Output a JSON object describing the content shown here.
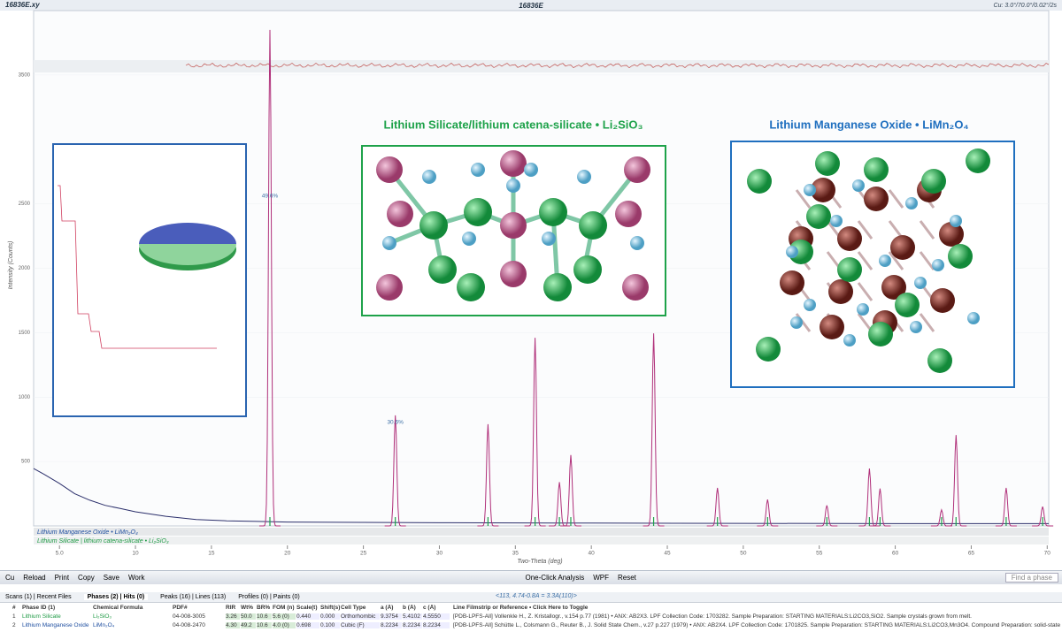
{
  "header": {
    "file_tab": "16836E.xy",
    "title": "16836E",
    "status": "Cu: 3.0°/70.0°/0.02°/2s"
  },
  "chart_data": {
    "type": "line",
    "x_label": "Two-Theta (deg)",
    "y_label": "Intensity (Counts)",
    "xlim": [
      3.3,
      70.1
    ],
    "ylim": [
      0,
      4000
    ],
    "xticks": [
      {
        "value": 5,
        "label": "5.0"
      },
      10,
      15,
      20,
      25,
      30,
      35,
      40,
      45,
      50,
      55,
      60,
      65,
      70
    ],
    "yticks": [
      500,
      1000,
      1500,
      2000,
      2500,
      3500
    ],
    "background": {
      "name": "Background",
      "color": "#2b2f6b",
      "x": [
        3.3,
        4,
        5,
        6,
        7,
        8,
        9,
        10,
        12,
        14,
        16,
        18,
        20,
        30,
        40,
        50,
        60,
        70.1
      ],
      "values": [
        445,
        400,
        330,
        250,
        200,
        160,
        135,
        110,
        75,
        50,
        40,
        35,
        30,
        25,
        22,
        20,
        18,
        18
      ]
    },
    "peaks": {
      "name": "Peaks",
      "color": "#b0307a",
      "x": [
        18.85,
        27.1,
        33.2,
        36.3,
        37.9,
        38.65,
        44.1,
        48.3,
        51.6,
        55.5,
        58.3,
        59.0,
        63.05,
        64.0,
        67.3,
        69.7
      ],
      "values": [
        3850,
        858,
        790,
        1460,
        340,
        550,
        1495,
        295,
        205,
        160,
        445,
        290,
        125,
        705,
        295,
        150
      ]
    },
    "peak_labels": [
      "49.6%",
      "30.6%"
    ],
    "phase_strips": [
      "Lithium Manganese Oxide • LiMn₂O₄",
      "Lithium Silicate | lithium catena-silicate • Li₂SiO₃"
    ],
    "structures": [
      "Lithium Silicate/lithium catena-silicate • Li₂SiO₃",
      "Lithium Manganese Oxide • LiMn₂O₄"
    ]
  },
  "toolbar": [
    "Cu",
    "Reload",
    "Print",
    "Copy",
    "Save",
    "Work",
    "One-Click Analysis",
    "WPF",
    "Reset",
    "Find a phase"
  ],
  "tabs": [
    "Scans (1) | Recent Files",
    "Phases (2) | Hits (0)",
    "Peaks (16) | Lines (113)",
    "Profiles (0) | Paints (0)"
  ],
  "readout": "<113, 4.74-0.8Å = 3.3Å(110)>",
  "table": {
    "columns": [
      "#",
      "Phase ID (1)",
      "Chemical Formula",
      "PDF#",
      "RIR",
      "Wt%",
      "BR%",
      "FOM (n)",
      "Scale(t)",
      "Shift(s)",
      "Cell Type",
      "a (Å)",
      "b (Å)",
      "c (Å)",
      "Line Filmstrip or Reference • Click Here to Toggle"
    ],
    "rows": [
      [
        "1",
        "Lithium Silicate",
        "Li₂SiO₃",
        "04-008-3005",
        "3.26",
        "50.0",
        "10.6",
        "5.6 (0)",
        "0.440",
        "0.000",
        "Orthorhombic",
        "9.3754",
        "5.4102",
        "4.5550",
        "[PDB-LPFS-All] Vollenkle H., Z. Kristallogr., v.154 p.77 (1981) • ANX: AB2X3. LPF Collection Code: 1703282. Sample Preparation: STARTING MATERIALS:Li2CO3,SiO2. Sample crystals grown from melt."
      ],
      [
        "2",
        "Lithium Manganese Oxide",
        "LiMn₂O₄",
        "04-008-2470",
        "4.30",
        "49.2",
        "10.6",
        "4.0 (0)",
        "0.698",
        "0.100",
        "Cubic (F)",
        "8.2234",
        "8.2234",
        "8.2234",
        "[PDB-LPFS-All] Schütte L., Colsmann G., Reuter B., J. Solid State Chem., v.27 p.227 (1979) • ANX: AB2X4. LPF Collection Code: 1701825. Sample Preparation: STARTING MATERIALS:Li2CO3,Mn3O4. Compound Preparation: solid-state reaction. ATMOSPHERE:"
      ]
    ]
  }
}
